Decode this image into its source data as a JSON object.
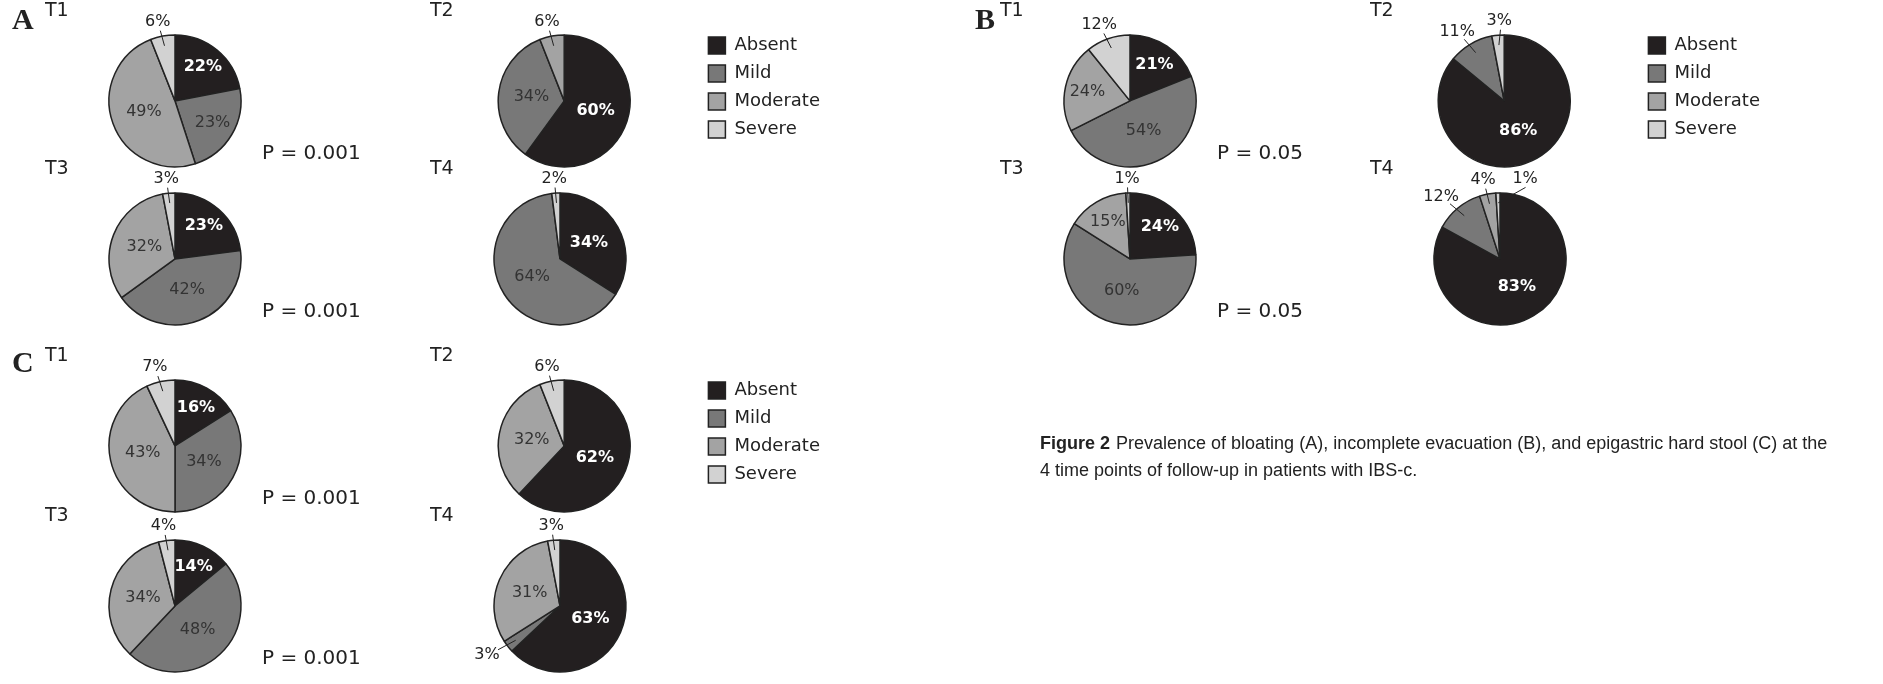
{
  "chart_data": [
    {
      "type": "pie",
      "title": "T1",
      "categories": [
        null,
        null,
        null,
        null
      ],
      "values": [
        22,
        23,
        49,
        6
      ],
      "colors": [
        "#231f20",
        "#787878",
        "#a3a3a3",
        "#d2d2d2"
      ],
      "value_labels": [
        "22%",
        "23%",
        "49%",
        "6%"
      ],
      "annotations": [
        "A",
        "P = 0.001"
      ]
    },
    {
      "type": "pie",
      "title": "T2",
      "categories": [
        "Absent",
        "Mild",
        "Moderate",
        "Severe"
      ],
      "values": [
        60,
        34,
        6,
        0
      ],
      "colors": [
        "#231f20",
        "#787878",
        "#a3a3a3",
        "#d2d2d2"
      ],
      "value_labels": [
        "60%",
        "34%",
        "6%",
        null
      ],
      "legend": "right"
    },
    {
      "type": "pie",
      "title": "T3",
      "categories": [
        null,
        null,
        null,
        null
      ],
      "values": [
        23,
        42,
        32,
        3
      ],
      "colors": [
        "#231f20",
        "#787878",
        "#a3a3a3",
        "#d2d2d2"
      ],
      "value_labels": [
        "23%",
        "42%",
        "32%",
        "3%"
      ],
      "annotations": [
        "P = 0.001"
      ]
    },
    {
      "type": "pie",
      "title": "T4",
      "categories": [
        null,
        null,
        null,
        null
      ],
      "values": [
        34,
        64,
        0,
        2
      ],
      "colors": [
        "#231f20",
        "#787878",
        "#a3a3a3",
        "#d2d2d2"
      ],
      "value_labels": [
        "34%",
        "64%",
        null,
        "2%"
      ]
    },
    {
      "type": "pie",
      "title": "T1",
      "categories": [
        null,
        null,
        null,
        null
      ],
      "values": [
        21,
        54,
        24,
        12
      ],
      "colors": [
        "#231f20",
        "#787878",
        "#a3a3a3",
        "#d2d2d2"
      ],
      "value_labels": [
        "21%",
        "54%",
        "24%",
        "12%"
      ],
      "annotations": [
        "B",
        "P = 0.05"
      ]
    },
    {
      "type": "pie",
      "title": "T2",
      "categories": [
        "Absent",
        "Mild",
        "Moderate",
        "Severe"
      ],
      "values": [
        86,
        11,
        0,
        3
      ],
      "colors": [
        "#231f20",
        "#787878",
        "#a3a3a3",
        "#d2d2d2"
      ],
      "value_labels": [
        "86%",
        "11%",
        null,
        "3%"
      ],
      "legend": "right"
    },
    {
      "type": "pie",
      "title": "T3",
      "categories": [
        null,
        null,
        null,
        null
      ],
      "values": [
        24,
        60,
        15,
        1
      ],
      "colors": [
        "#231f20",
        "#787878",
        "#a3a3a3",
        "#d2d2d2"
      ],
      "value_labels": [
        "24%",
        "60%",
        "15%",
        "1%"
      ],
      "annotations": [
        "P = 0.05"
      ]
    },
    {
      "type": "pie",
      "title": "T4",
      "categories": [
        null,
        null,
        null,
        null
      ],
      "values": [
        83,
        12,
        4,
        1
      ],
      "colors": [
        "#231f20",
        "#787878",
        "#a3a3a3",
        "#d2d2d2"
      ],
      "value_labels": [
        "83%",
        "12%",
        "4%",
        "1%"
      ]
    },
    {
      "type": "pie",
      "title": "T1",
      "categories": [
        null,
        null,
        null,
        null
      ],
      "values": [
        16,
        34,
        43,
        7
      ],
      "colors": [
        "#231f20",
        "#787878",
        "#a3a3a3",
        "#d2d2d2"
      ],
      "value_labels": [
        "16%",
        "34%",
        "43%",
        "7%"
      ],
      "annotations": [
        "C",
        "P = 0.001"
      ]
    },
    {
      "type": "pie",
      "title": "T2",
      "categories": [
        "Absent",
        "Mild",
        "Moderate",
        "Severe"
      ],
      "values": [
        62,
        0,
        32,
        6
      ],
      "colors": [
        "#231f20",
        "#787878",
        "#a3a3a3",
        "#d2d2d2"
      ],
      "value_labels": [
        "62%",
        null,
        "32%",
        "6%"
      ],
      "legend": "right"
    },
    {
      "type": "pie",
      "title": "T3",
      "categories": [
        null,
        null,
        null,
        null
      ],
      "values": [
        14,
        48,
        34,
        4
      ],
      "colors": [
        "#231f20",
        "#787878",
        "#a3a3a3",
        "#d2d2d2"
      ],
      "value_labels": [
        "14%",
        "48%",
        "34%",
        "4%"
      ],
      "annotations": [
        "P = 0.001"
      ]
    },
    {
      "type": "pie",
      "title": "T4",
      "categories": [
        null,
        null,
        null,
        null
      ],
      "values": [
        63,
        3,
        31,
        3
      ],
      "colors": [
        "#231f20",
        "#787878",
        "#a3a3a3",
        "#d2d2d2"
      ],
      "value_labels": [
        "63%",
        "3%",
        "31%",
        "3%"
      ]
    },
    {
      "type": "other",
      "title": "Figure 2",
      "annotations": [
        "Prevalence of bloating (A), incomplete evacuation (B), and epigastric hard stool (C) at the 4 time points of follow-up in patients with IBS-c."
      ]
    }
  ]
}
